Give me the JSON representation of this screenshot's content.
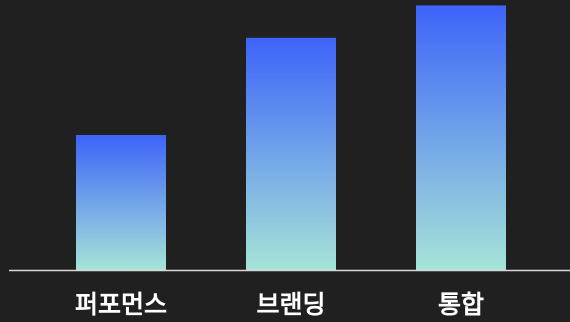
{
  "chart_data": {
    "type": "bar",
    "categories": [
      "퍼포먼스",
      "브랜딩",
      "통합"
    ],
    "values": [
      50,
      86,
      98
    ],
    "ylim": [
      0,
      100
    ],
    "title": "",
    "xlabel": "",
    "ylabel": "",
    "grid": false,
    "legend": "none",
    "colors": {
      "background": "#202020",
      "bar_top": "#3d63f9",
      "bar_bottom": "#a6e4d8",
      "axis": "#d9d9d9",
      "label": "#ffffff"
    }
  }
}
